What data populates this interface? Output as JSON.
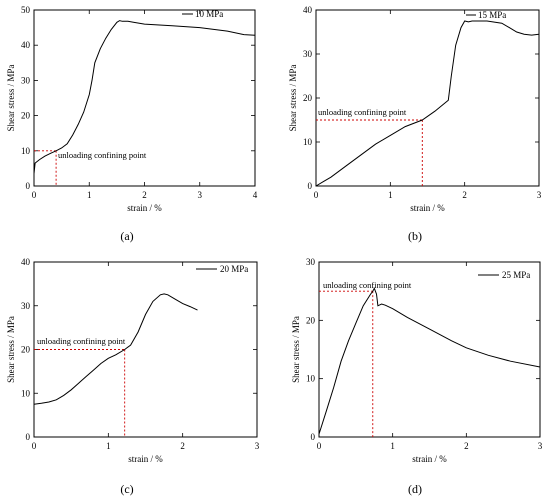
{
  "figure": {
    "panel_count": 4
  },
  "chart_data": [
    {
      "type": "line",
      "panel_label": "(a)",
      "xlabel": "strain / %",
      "ylabel": "Shear stress / MPa",
      "xlim": [
        0,
        4
      ],
      "ylim": [
        0,
        50
      ],
      "xticks": [
        0,
        1,
        2,
        3,
        4
      ],
      "yticks": [
        0,
        10,
        20,
        30,
        40,
        50
      ],
      "legend_position": "top-right",
      "series": [
        {
          "name": "10 MPa",
          "color": "#000000",
          "x": [
            0,
            0.02,
            0.1,
            0.2,
            0.3,
            0.4,
            0.5,
            0.6,
            0.7,
            0.8,
            0.9,
            1.0,
            1.05,
            1.1,
            1.2,
            1.3,
            1.4,
            1.5,
            1.55,
            1.6,
            1.7,
            1.8,
            2.0,
            2.5,
            3.0,
            3.5,
            3.8,
            4.0
          ],
          "y": [
            3.5,
            6.5,
            7.5,
            8.5,
            9.3,
            10,
            10.8,
            12,
            14.5,
            17.5,
            21,
            26,
            30,
            35,
            39,
            42,
            44.5,
            46.5,
            47,
            46.8,
            46.8,
            46.5,
            46,
            45.5,
            45,
            44,
            43,
            42.8
          ]
        }
      ],
      "annotation": {
        "text": "unloading confining point",
        "x": 0.4,
        "y": 10,
        "color": "#cc0000"
      }
    },
    {
      "type": "line",
      "panel_label": "(b)",
      "xlabel": "strain / %",
      "ylabel": "Shear stress / MPa",
      "xlim": [
        0,
        3
      ],
      "ylim": [
        0,
        40
      ],
      "xticks": [
        0,
        1,
        2,
        3
      ],
      "yticks": [
        0,
        10,
        20,
        30,
        40
      ],
      "legend_position": "top-right",
      "series": [
        {
          "name": "15 MPa",
          "color": "#000000",
          "x": [
            0,
            0.1,
            0.2,
            0.4,
            0.6,
            0.8,
            1.0,
            1.2,
            1.43,
            1.6,
            1.78,
            1.82,
            1.88,
            1.95,
            2.0,
            2.05,
            2.1,
            2.3,
            2.5,
            2.6,
            2.7,
            2.8,
            2.9,
            3.0
          ],
          "y": [
            0,
            1,
            2,
            4.5,
            7,
            9.5,
            11.5,
            13.5,
            15,
            17,
            19.5,
            25,
            32,
            36,
            37.5,
            37.3,
            37.5,
            37.5,
            37,
            36,
            35,
            34.5,
            34.3,
            34.5
          ]
        }
      ],
      "annotation": {
        "text": "unloading confining point",
        "x": 1.43,
        "y": 15,
        "color": "#cc0000"
      }
    },
    {
      "type": "line",
      "panel_label": "(c)",
      "xlabel": "strain / %",
      "ylabel": "Shear stress / MPa",
      "xlim": [
        0,
        3
      ],
      "ylim": [
        0,
        40
      ],
      "xticks": [
        0,
        1,
        2,
        3
      ],
      "yticks": [
        0,
        10,
        20,
        30,
        40
      ],
      "legend_position": "top-right",
      "series": [
        {
          "name": "20 MPa",
          "color": "#000000",
          "x": [
            0,
            0.1,
            0.2,
            0.3,
            0.4,
            0.5,
            0.6,
            0.7,
            0.8,
            0.9,
            1.0,
            1.1,
            1.22,
            1.3,
            1.4,
            1.5,
            1.6,
            1.7,
            1.75,
            1.8,
            1.9,
            2.0,
            2.1,
            2.2
          ],
          "y": [
            7.5,
            7.7,
            8,
            8.5,
            9.5,
            10.8,
            12.3,
            13.8,
            15.3,
            16.8,
            18,
            18.8,
            20,
            21,
            24,
            28,
            31,
            32.5,
            32.7,
            32.5,
            31.5,
            30.5,
            29.8,
            29
          ]
        }
      ],
      "annotation": {
        "text": "unloading confining point",
        "x": 1.22,
        "y": 20,
        "color": "#cc0000"
      }
    },
    {
      "type": "line",
      "panel_label": "(d)",
      "xlabel": "strain / %",
      "ylabel": "Shear stress / MPa",
      "xlim": [
        0,
        3
      ],
      "ylim": [
        0,
        30
      ],
      "xticks": [
        0,
        1,
        2,
        3
      ],
      "yticks": [
        0,
        10,
        20,
        30
      ],
      "legend_position": "top-right",
      "series": [
        {
          "name": "25 MPa",
          "color": "#000000",
          "x": [
            0,
            0.1,
            0.2,
            0.3,
            0.4,
            0.5,
            0.6,
            0.7,
            0.73,
            0.75,
            0.78,
            0.8,
            0.85,
            0.9,
            1.0,
            1.2,
            1.5,
            1.8,
            2.0,
            2.3,
            2.6,
            3.0
          ],
          "y": [
            0.5,
            4.5,
            8.5,
            13,
            16.5,
            19.5,
            22.5,
            24.5,
            25,
            25.5,
            24.5,
            22.5,
            22.8,
            22.6,
            22,
            20.5,
            18.5,
            16.5,
            15.3,
            14,
            13,
            12
          ]
        }
      ],
      "annotation": {
        "text": "unloading confining point",
        "x": 0.73,
        "y": 25,
        "color": "#cc0000"
      }
    }
  ]
}
